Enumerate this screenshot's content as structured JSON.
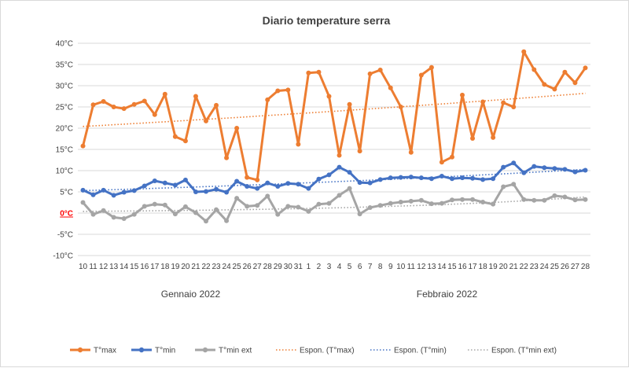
{
  "chart_data": {
    "type": "line",
    "title": "Diario temperature serra",
    "y_ticks": [
      "40°C",
      "35°C",
      "30°C",
      "25°C",
      "20°C",
      "15°C",
      "10°C",
      "5°C",
      "0°C",
      "-5°C",
      "-10°C"
    ],
    "highlight_tick": "0°C",
    "ylim": [
      -10,
      40
    ],
    "x_categories": [
      "10",
      "11",
      "12",
      "13",
      "14",
      "15",
      "16",
      "17",
      "18",
      "19",
      "20",
      "21",
      "22",
      "23",
      "24",
      "25",
      "26",
      "27",
      "28",
      "29",
      "30",
      "31",
      "1",
      "2",
      "3",
      "4",
      "5",
      "6",
      "7",
      "8",
      "9",
      "10",
      "11",
      "12",
      "13",
      "14",
      "15",
      "16",
      "17",
      "18",
      "19",
      "20",
      "21",
      "22",
      "23",
      "24",
      "25",
      "26",
      "27",
      "28"
    ],
    "x_groups": [
      {
        "label": "Gennaio 2022",
        "from": 0,
        "to": 21
      },
      {
        "label": "Febbraio 2022",
        "from": 22,
        "to": 49
      }
    ],
    "grid": true,
    "legend_position": "bottom",
    "series": [
      {
        "name": "T°max",
        "color": "#ed7d31",
        "values": [
          15.8,
          25.5,
          26.3,
          25,
          24.6,
          25.6,
          26.4,
          23.2,
          28,
          18,
          17,
          27.5,
          21.7,
          25.4,
          13,
          20,
          8.4,
          7.8,
          26.7,
          28.8,
          29,
          16.2,
          33,
          33.2,
          27.5,
          13.6,
          25.6,
          14.6,
          32.8,
          33.7,
          29.5,
          25,
          14.3,
          32.5,
          34.3,
          12,
          13.2,
          27.8,
          17.6,
          26.2,
          17.8,
          26,
          25,
          38,
          33.8,
          30.3,
          29.2,
          33.2,
          30.7,
          34.2
        ]
      },
      {
        "name": "T°min",
        "color": "#4472c4",
        "values": [
          5.4,
          4.3,
          5.4,
          4.2,
          4.9,
          5.3,
          6.4,
          7.6,
          7.1,
          6.6,
          7.8,
          5,
          5.1,
          5.6,
          4.9,
          7.5,
          6.3,
          5.8,
          7.1,
          6.3,
          7,
          6.8,
          5.8,
          8,
          9,
          10.8,
          9.6,
          7.2,
          7.1,
          7.9,
          8.3,
          8.4,
          8.5,
          8.3,
          8.1,
          8.7,
          8.1,
          8.3,
          8.2,
          7.9,
          8.1,
          10.8,
          11.8,
          9.5,
          11,
          10.7,
          10.5,
          10.3,
          9.7,
          10.1
        ]
      },
      {
        "name": "T°min ext",
        "color": "#a5a5a5",
        "values": [
          2.5,
          -0.3,
          0.6,
          -1,
          -1.3,
          -0.3,
          1.6,
          2.1,
          1.9,
          -0.2,
          1.5,
          0.1,
          -1.9,
          0.8,
          -1.8,
          3.5,
          1.6,
          1.8,
          4,
          -0.3,
          1.6,
          1.4,
          0.4,
          2.1,
          2.3,
          4.2,
          5.8,
          -0.2,
          1.3,
          1.8,
          2.3,
          2.6,
          2.8,
          3,
          2.2,
          2.3,
          3.1,
          3.2,
          3.2,
          2.6,
          2.1,
          6.2,
          6.8,
          3.2,
          3,
          3,
          4.1,
          3.8,
          3.1,
          3.2
        ]
      }
    ],
    "trendlines": [
      {
        "name": "Espon. (T°max)",
        "color": "#ed7d31",
        "from": 20.4,
        "to": 28.2
      },
      {
        "name": "Espon. (T°min)",
        "color": "#4472c4",
        "from": 5.3,
        "to": 10.3
      },
      {
        "name": "Espon. (T°min ext)",
        "color": "#a5a5a5",
        "from": 0.4,
        "to": 3.8
      }
    ]
  }
}
